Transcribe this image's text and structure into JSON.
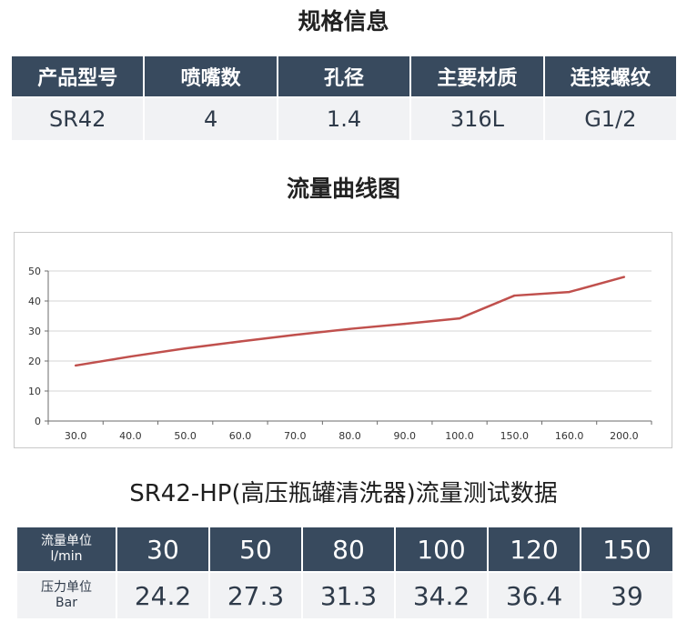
{
  "spec_section": {
    "title": "规格信息",
    "headers": [
      "产品型号",
      "喷嘴数",
      "孔径",
      "主要材质",
      "连接螺纹"
    ],
    "values": [
      "SR42",
      "4",
      "1.4",
      "316L",
      "G1/2"
    ]
  },
  "curve_section": {
    "title": "流量曲线图"
  },
  "chart_data": {
    "type": "line",
    "title": "",
    "xlabel": "",
    "ylabel": "",
    "categories": [
      "30.0",
      "40.0",
      "50.0",
      "60.0",
      "70.0",
      "80.0",
      "90.0",
      "100.0",
      "150.0",
      "160.0",
      "200.0"
    ],
    "series": [
      {
        "values": [
          18.5,
          21.5,
          24.2,
          26.5,
          28.7,
          30.7,
          32.4,
          34.2,
          41.8,
          43.0,
          48.0
        ]
      }
    ],
    "ylim": [
      0,
      50
    ],
    "yticks": [
      0,
      10,
      20,
      30,
      40,
      50
    ],
    "grid": true,
    "line_color": "#c0504d"
  },
  "test_section": {
    "title": "SR42-HP(高压瓶罐清洗器)流量测试数据",
    "flow_label_line1": "流量单位",
    "flow_label_line2": "l/min",
    "pressure_label_line1": "压力单位",
    "pressure_label_line2": "Bar",
    "flow_values": [
      "30",
      "50",
      "80",
      "100",
      "120",
      "150"
    ],
    "pressure_values": [
      "24.2",
      "27.3",
      "31.3",
      "34.2",
      "36.4",
      "39"
    ]
  }
}
